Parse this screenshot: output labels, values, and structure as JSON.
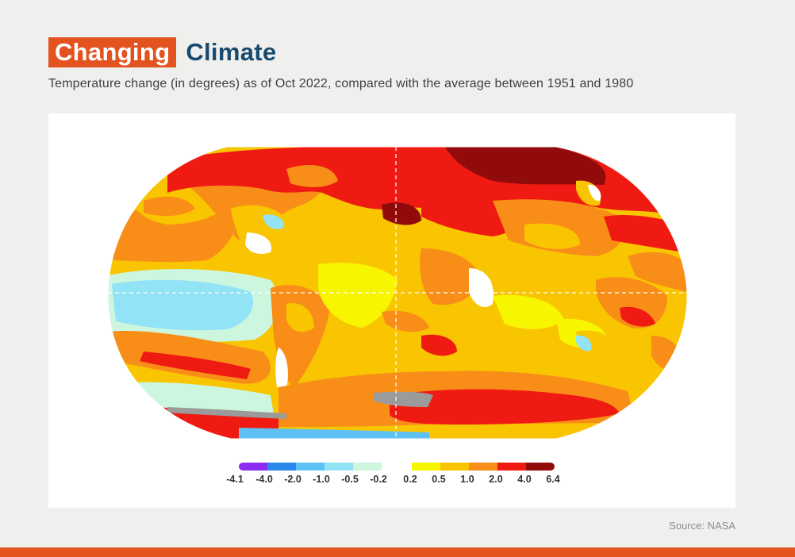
{
  "header": {
    "title_highlight": "Changing",
    "title_rest": "Climate",
    "subtitle": "Temperature change (in degrees) as of Oct 2022, compared with the average between 1951 and 1980"
  },
  "map": {
    "projection": "Robinson",
    "reference_lines": [
      "equator",
      "prime-meridian"
    ]
  },
  "legend": {
    "ticks": [
      "-4.1",
      "-4.0",
      "-2.0",
      "-1.0",
      "-0.5",
      "-0.2",
      "0.2",
      "0.5",
      "1.0",
      "2.0",
      "4.0",
      "6.4"
    ],
    "cold_colors": [
      "#8b2cf2",
      "#2887ea",
      "#5ec1f3",
      "#93e3f7",
      "#cdf6df"
    ],
    "warm_colors": [
      "#f8f500",
      "#f9c500",
      "#f88e18",
      "#ef1b12",
      "#920b0b"
    ]
  },
  "source": "Source: NASA",
  "colors": {
    "accent": "#e2531f",
    "title_blue": "#174a6e",
    "no_data": "#9b9b9b"
  }
}
